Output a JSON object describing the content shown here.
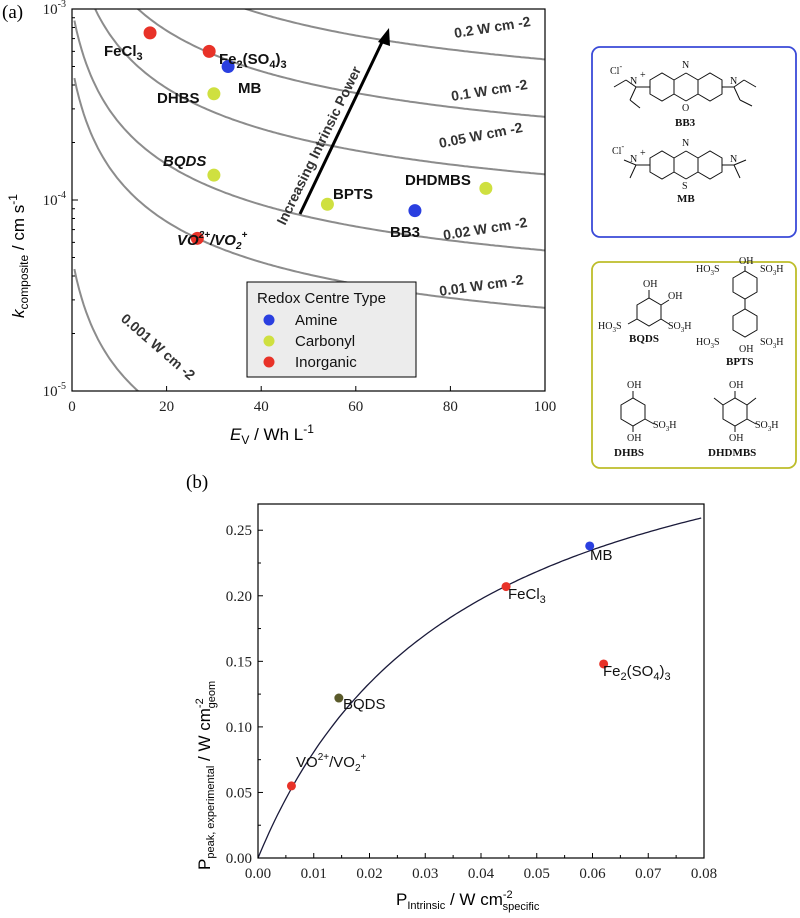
{
  "chart_data": [
    {
      "panel": "(a)",
      "type": "scatter",
      "xlabel_main": "E",
      "xlabel_sub": "V",
      "xlabel_unit": " / Wh L",
      "xlabel_sup": "-1",
      "ylabel_main": "k",
      "ylabel_sub": "composite",
      "ylabel_unit": " / cm s",
      "ylabel_sup": "-1",
      "xlim": [
        0,
        100
      ],
      "ylim": [
        1e-05,
        0.001
      ],
      "yscale": "log",
      "x_ticks": [
        "0",
        "20",
        "40",
        "60",
        "80",
        "100"
      ],
      "y_ticks": [
        {
          "base": "10",
          "exp": "-3"
        },
        {
          "base": "10",
          "exp": "-4"
        },
        {
          "base": "10",
          "exp": "-5"
        }
      ],
      "isolines": [
        {
          "label": "0.2 W cm -2",
          "power": 0.2
        },
        {
          "label": "0.1 W cm -2",
          "power": 0.1
        },
        {
          "label": "0.05 W cm -2",
          "power": 0.05
        },
        {
          "label": "0.02 W cm -2",
          "power": 0.02
        },
        {
          "label": "0.01 W cm -2",
          "power": 0.01
        },
        {
          "label": "0.001 W cm -2",
          "power": 0.001
        }
      ],
      "arrow_label": "Increasing Intrinsic Power",
      "points": [
        {
          "label": "FeCl",
          "sub": "3",
          "x": 16.5,
          "y": 0.00075,
          "type": "Inorganic"
        },
        {
          "label": "Fe",
          "sub": "2",
          "mid": "(SO",
          "sub2": "4",
          "end": ")",
          "sub3": "3",
          "x": 29,
          "y": 0.0006,
          "type": "Inorganic"
        },
        {
          "label": "MB",
          "x": 33,
          "y": 0.0005,
          "type": "Amine"
        },
        {
          "label": "DHBS",
          "x": 30,
          "y": 0.00036,
          "type": "Carbonyl"
        },
        {
          "label": "BQDS",
          "x": 30,
          "y": 0.000135,
          "type": "Carbonyl"
        },
        {
          "label": "BPTS",
          "x": 54,
          "y": 9.5e-05,
          "type": "Carbonyl"
        },
        {
          "label": "DHDMBS",
          "x": 87.5,
          "y": 0.000115,
          "type": "Carbonyl"
        },
        {
          "label": "BB3",
          "x": 72.5,
          "y": 8.8e-05,
          "type": "Amine"
        },
        {
          "label": "VO",
          "x": 26.5,
          "y": 6.3e-05,
          "type": "Inorganic"
        }
      ],
      "vo_label": {
        "a": "VO",
        "a_sup": "2+",
        "b": "/VO",
        "b_sub": "2",
        "b_sup": "+"
      },
      "legend": {
        "title": "Redox Centre Type",
        "entries": [
          {
            "name": "Amine",
            "color": "#2a3fe0"
          },
          {
            "name": "Carbonyl",
            "color": "#cfe040"
          },
          {
            "name": "Inorganic",
            "color": "#e83228"
          }
        ]
      }
    },
    {
      "panel": "(b)",
      "type": "scatter",
      "xlabel_main": "P",
      "xlabel_sub": "Intrinsic",
      "xlabel_unit": " / W cm",
      "xlabel_sup": "-2",
      "xlabel_sub2": "specific",
      "ylabel_main": "P",
      "ylabel_sub": "peak, experimental",
      "ylabel_unit": " / W cm",
      "ylabel_sup": "-2",
      "ylabel_sub2": "geom",
      "xlim": [
        0,
        0.08
      ],
      "ylim": [
        0,
        0.27
      ],
      "x_ticks": [
        "0.00",
        "0.01",
        "0.02",
        "0.03",
        "0.04",
        "0.05",
        "0.06",
        "0.07",
        "0.08"
      ],
      "y_ticks": [
        "0.00",
        "0.05",
        "0.10",
        "0.15",
        "0.20",
        "0.25"
      ],
      "points": [
        {
          "label": "MB",
          "x": 0.0595,
          "y": 0.238,
          "color": "#2a3fe0"
        },
        {
          "label": "FeCl",
          "sub": "3",
          "x": 0.0445,
          "y": 0.207,
          "color": "#e83228"
        },
        {
          "label": "Fe",
          "sub": "2",
          "mid": "(SO",
          "sub2": "4",
          "end": ")",
          "sub3": "3",
          "x": 0.062,
          "y": 0.148,
          "color": "#e83228"
        },
        {
          "label": "BQDS",
          "x": 0.0145,
          "y": 0.122,
          "color": "#5a5a2a"
        },
        {
          "label": "VO",
          "sup": "2+",
          "rest": "/VO",
          "sub": "2",
          "sup2": "+",
          "x": 0.006,
          "y": 0.055,
          "color": "#e83228"
        }
      ],
      "fit_curve": {
        "a": 0.38,
        "b": 0.037
      }
    }
  ],
  "structures": {
    "amine": [
      {
        "name": "BB3",
        "counter": "Cl",
        "counter_sup": "-",
        "charge": "+"
      },
      {
        "name": "MB",
        "counter": "Cl",
        "counter_sup": "-",
        "charge": "+"
      }
    ],
    "carbonyl": [
      {
        "name": "BQDS"
      },
      {
        "name": "BPTS"
      },
      {
        "name": "DHBS"
      },
      {
        "name": "DHDMBS"
      }
    ],
    "atoms": {
      "N": "N",
      "O": "O",
      "S": "S",
      "OH": "OH",
      "so3h": "SO",
      "so3h_sub": "3",
      "so3h_end": "H",
      "ho3s": "HO",
      "ho3s_sub": "3",
      "ho3s_end": "S"
    }
  }
}
